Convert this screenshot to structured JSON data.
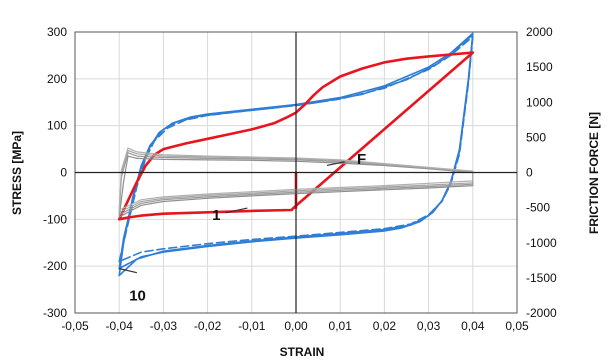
{
  "chart_data": {
    "type": "line",
    "xlabel": "STRAIN",
    "ylabel": "STRESS [MPa]",
    "y2label": "FRICTION FORCE [N]",
    "xlim": [
      -0.05,
      0.05
    ],
    "ylim": [
      -300,
      300
    ],
    "y2lim": [
      -2000,
      2000
    ],
    "grid": true,
    "x_ticks": [
      "-0,05",
      "-0,04",
      "-0,03",
      "-0,02",
      "-0,01",
      "0,00",
      "0,01",
      "0,02",
      "0,03",
      "0,04",
      "0,05"
    ],
    "y_ticks": [
      "-300",
      "-200",
      "-100",
      "0",
      "100",
      "200",
      "300"
    ],
    "y2_ticks": [
      "-2000",
      "-1500",
      "-1000",
      "-500",
      "0",
      "500",
      "1000",
      "1500",
      "2000"
    ],
    "annotations": [
      {
        "text": "F",
        "x": 0.012,
        "y": 22
      },
      {
        "text": "1",
        "x": -0.014,
        "y": -84
      },
      {
        "text": "10",
        "x": -0.04,
        "y": -218
      }
    ],
    "series": [
      {
        "color": "#2e7dd6",
        "values": [
          [
            -0.04,
            -205
          ],
          [
            -0.039,
            -140
          ],
          [
            -0.037,
            -60
          ],
          [
            -0.035,
            10
          ],
          [
            -0.033,
            55
          ],
          [
            -0.031,
            85
          ],
          [
            -0.028,
            105
          ],
          [
            -0.024,
            118
          ],
          [
            -0.02,
            125
          ],
          [
            -0.01,
            135
          ],
          [
            0,
            145
          ],
          [
            0.01,
            160
          ],
          [
            0.02,
            185
          ],
          [
            0.03,
            225
          ],
          [
            0.035,
            255
          ],
          [
            0.04,
            297
          ],
          [
            0.039,
            200
          ],
          [
            0.037,
            50
          ],
          [
            0.035,
            -20
          ],
          [
            0.033,
            -60
          ],
          [
            0.031,
            -85
          ],
          [
            0.028,
            -105
          ],
          [
            0.024,
            -118
          ],
          [
            0.02,
            -125
          ],
          [
            0.01,
            -133
          ],
          [
            0,
            -140
          ],
          [
            -0.01,
            -148
          ],
          [
            -0.02,
            -158
          ],
          [
            -0.03,
            -170
          ],
          [
            -0.035,
            -180
          ],
          [
            -0.04,
            -205
          ]
        ]
      },
      {
        "color": "#2e7dd6",
        "dashed": true,
        "values": [
          [
            -0.04,
            -190
          ],
          [
            -0.038,
            -110
          ],
          [
            -0.036,
            -30
          ],
          [
            -0.034,
            30
          ],
          [
            -0.032,
            68
          ],
          [
            -0.029,
            95
          ],
          [
            -0.025,
            112
          ],
          [
            -0.02,
            122
          ],
          [
            -0.01,
            133
          ],
          [
            0,
            143
          ],
          [
            0.01,
            157
          ],
          [
            0.02,
            180
          ],
          [
            0.03,
            220
          ],
          [
            0.035,
            250
          ],
          [
            0.04,
            290
          ],
          [
            0.039,
            190
          ],
          [
            0.037,
            40
          ],
          [
            0.035,
            -25
          ],
          [
            0.033,
            -62
          ],
          [
            0.03,
            -90
          ],
          [
            0.026,
            -110
          ],
          [
            0.02,
            -120
          ],
          [
            0.01,
            -128
          ],
          [
            0,
            -136
          ],
          [
            -0.01,
            -143
          ],
          [
            -0.02,
            -152
          ],
          [
            -0.03,
            -163
          ],
          [
            -0.035,
            -170
          ],
          [
            -0.04,
            -190
          ]
        ]
      },
      {
        "color": "#2e7dd6",
        "values": [
          [
            -0.04,
            -220
          ],
          [
            -0.039,
            -150
          ],
          [
            -0.037,
            -55
          ],
          [
            -0.035,
            15
          ],
          [
            -0.033,
            58
          ],
          [
            -0.03,
            92
          ],
          [
            -0.027,
            108
          ],
          [
            -0.022,
            120
          ],
          [
            -0.015,
            128
          ],
          [
            -0.005,
            138
          ],
          [
            0.005,
            150
          ],
          [
            0.015,
            167
          ],
          [
            0.025,
            198
          ],
          [
            0.032,
            232
          ],
          [
            0.036,
            262
          ],
          [
            0.04,
            294
          ],
          [
            0.039,
            195
          ],
          [
            0.037,
            45
          ],
          [
            0.035,
            -22
          ],
          [
            0.033,
            -61
          ],
          [
            0.03,
            -92
          ],
          [
            0.026,
            -112
          ],
          [
            0.02,
            -122
          ],
          [
            0.01,
            -130
          ],
          [
            0,
            -138
          ],
          [
            -0.01,
            -146
          ],
          [
            -0.02,
            -156
          ],
          [
            -0.03,
            -168
          ],
          [
            -0.036,
            -185
          ],
          [
            -0.04,
            -220
          ]
        ]
      },
      {
        "color": "#e8141e",
        "values": [
          [
            -0.0005,
            -75
          ],
          [
            -0.001,
            -80
          ],
          [
            -0.01,
            -82
          ],
          [
            -0.02,
            -85
          ],
          [
            -0.03,
            -88
          ],
          [
            -0.035,
            -92
          ],
          [
            -0.038,
            -96
          ],
          [
            -0.04,
            -100
          ],
          [
            -0.038,
            -60
          ],
          [
            -0.036,
            -20
          ],
          [
            -0.034,
            15
          ],
          [
            -0.032,
            38
          ],
          [
            -0.03,
            50
          ],
          [
            -0.025,
            62
          ],
          [
            -0.02,
            72
          ],
          [
            -0.015,
            82
          ],
          [
            -0.01,
            92
          ],
          [
            -0.005,
            105
          ],
          [
            -0.002,
            118
          ],
          [
            0,
            128
          ],
          [
            0.002,
            145
          ],
          [
            0.004,
            165
          ],
          [
            0.006,
            182
          ],
          [
            0.01,
            205
          ],
          [
            0.015,
            222
          ],
          [
            0.02,
            235
          ],
          [
            0.025,
            243
          ],
          [
            0.03,
            248
          ],
          [
            0.035,
            252
          ],
          [
            0.04,
            256
          ],
          [
            -0.0005,
            -75
          ],
          [
            -0.0005,
            -75
          ],
          [
            0,
            -75
          ],
          [
            0,
            0
          ]
        ]
      },
      {
        "color": "#8f8f8f",
        "values": [
          [
            -0.04,
            -95
          ],
          [
            -0.039,
            -20
          ],
          [
            -0.038,
            35
          ],
          [
            -0.036,
            30
          ],
          [
            -0.03,
            28
          ],
          [
            -0.02,
            27
          ],
          [
            -0.01,
            26
          ],
          [
            0,
            24
          ],
          [
            0.01,
            20
          ],
          [
            0.02,
            15
          ],
          [
            0.03,
            8
          ],
          [
            0.04,
            0
          ],
          [
            0.04,
            -28
          ],
          [
            0.03,
            -33
          ],
          [
            0.02,
            -37
          ],
          [
            0.01,
            -41
          ],
          [
            0,
            -45
          ],
          [
            -0.01,
            -50
          ],
          [
            -0.02,
            -55
          ],
          [
            -0.03,
            -62
          ],
          [
            -0.035,
            -70
          ],
          [
            -0.04,
            -95
          ]
        ]
      },
      {
        "color": "#9a9a9a",
        "values": [
          [
            -0.04,
            -90
          ],
          [
            -0.0395,
            -10
          ],
          [
            -0.038,
            42
          ],
          [
            -0.036,
            35
          ],
          [
            -0.03,
            32
          ],
          [
            -0.02,
            30
          ],
          [
            -0.01,
            29
          ],
          [
            0,
            27
          ],
          [
            0.01,
            23
          ],
          [
            0.02,
            16
          ],
          [
            0.03,
            9
          ],
          [
            0.04,
            1
          ],
          [
            0.04,
            -25
          ],
          [
            0.03,
            -30
          ],
          [
            0.02,
            -34
          ],
          [
            0.01,
            -38
          ],
          [
            0,
            -42
          ],
          [
            -0.01,
            -47
          ],
          [
            -0.02,
            -52
          ],
          [
            -0.03,
            -58
          ],
          [
            -0.035,
            -66
          ],
          [
            -0.04,
            -90
          ]
        ]
      },
      {
        "color": "#a5a5a5",
        "values": [
          [
            -0.04,
            -85
          ],
          [
            -0.0395,
            0
          ],
          [
            -0.038,
            47
          ],
          [
            -0.036,
            40
          ],
          [
            -0.03,
            35
          ],
          [
            -0.02,
            33
          ],
          [
            -0.01,
            31
          ],
          [
            0,
            29
          ],
          [
            0.01,
            25
          ],
          [
            0.02,
            18
          ],
          [
            0.03,
            10
          ],
          [
            0.04,
            2
          ],
          [
            0.04,
            -22
          ],
          [
            0.03,
            -27
          ],
          [
            0.02,
            -31
          ],
          [
            0.01,
            -35
          ],
          [
            0,
            -39
          ],
          [
            -0.01,
            -44
          ],
          [
            -0.02,
            -49
          ],
          [
            -0.03,
            -55
          ],
          [
            -0.035,
            -62
          ],
          [
            -0.04,
            -85
          ]
        ]
      },
      {
        "color": "#b0b0b0",
        "values": [
          [
            -0.04,
            -80
          ],
          [
            -0.0395,
            5
          ],
          [
            -0.038,
            52
          ],
          [
            -0.036,
            44
          ],
          [
            -0.03,
            38
          ],
          [
            -0.02,
            35
          ],
          [
            -0.01,
            33
          ],
          [
            0,
            31
          ],
          [
            0.01,
            27
          ],
          [
            0.02,
            19
          ],
          [
            0.03,
            11
          ],
          [
            0.04,
            3
          ],
          [
            0.04,
            -18
          ],
          [
            0.03,
            -23
          ],
          [
            0.02,
            -28
          ],
          [
            0.01,
            -32
          ],
          [
            0,
            -36
          ],
          [
            -0.01,
            -41
          ],
          [
            -0.02,
            -46
          ],
          [
            -0.03,
            -52
          ],
          [
            -0.035,
            -58
          ],
          [
            -0.04,
            -80
          ]
        ]
      }
    ]
  }
}
